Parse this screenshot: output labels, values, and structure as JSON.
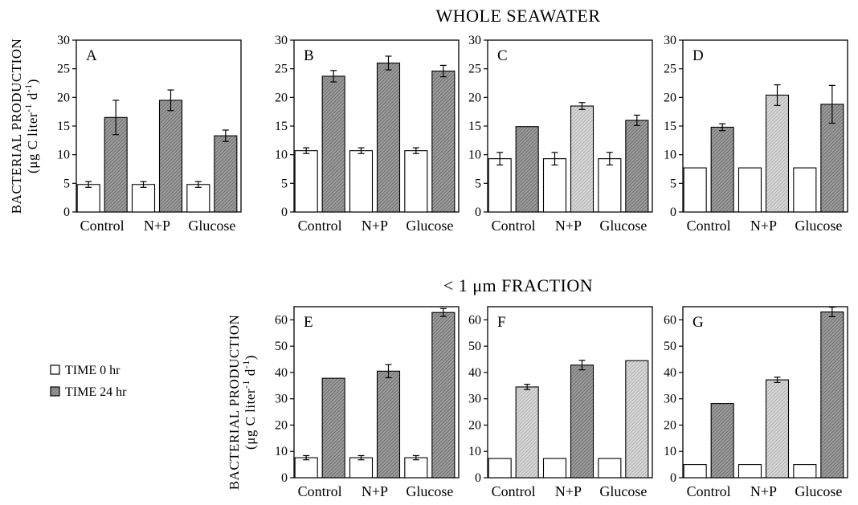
{
  "titles": {
    "top": "WHOLE SEAWATER",
    "bottom": "< 1 μm FRACTION"
  },
  "ylabel": {
    "line1": "BACTERIAL PRODUCTION",
    "line2_prefix": "(μg C liter",
    "line2_mid": " d",
    "line2_suffix": ")",
    "exp": "-1"
  },
  "legend": {
    "items": [
      {
        "label": "TIME 0 hr",
        "fill": "#ffffff"
      },
      {
        "label": "TIME 24 hr",
        "fill": "#8f8f8f"
      }
    ]
  },
  "colors": {
    "open_bar": "#ffffff",
    "dark_bar": "#8f8f8f",
    "light_bar": "#c9c9c9",
    "stroke": "#000000"
  },
  "chart_data": [
    {
      "id": "A",
      "label": "A",
      "type": "bar",
      "categories": [
        "Control",
        "N+P",
        "Glucose"
      ],
      "ylim": [
        0,
        30
      ],
      "yticks": [
        0,
        5,
        10,
        15,
        20,
        25,
        30
      ],
      "series": [
        {
          "name": "TIME 0 hr",
          "values": [
            4.8,
            4.8,
            4.8
          ],
          "err": [
            0.5,
            0.5,
            0.5
          ],
          "shade": [
            "open",
            "open",
            "open"
          ]
        },
        {
          "name": "TIME 24 hr",
          "values": [
            16.5,
            19.5,
            13.3
          ],
          "err": [
            3.0,
            1.8,
            1.0
          ],
          "shade": [
            "dark",
            "dark",
            "dark"
          ]
        }
      ]
    },
    {
      "id": "B",
      "label": "B",
      "type": "bar",
      "categories": [
        "Control",
        "N+P",
        "Glucose"
      ],
      "ylim": [
        0,
        30
      ],
      "yticks": [
        0,
        5,
        10,
        15,
        20,
        25,
        30
      ],
      "series": [
        {
          "name": "TIME 0 hr",
          "values": [
            10.7,
            10.7,
            10.7
          ],
          "err": [
            0.5,
            0.5,
            0.5
          ],
          "shade": [
            "open",
            "open",
            "open"
          ]
        },
        {
          "name": "TIME 24 hr",
          "values": [
            23.7,
            26.0,
            24.6
          ],
          "err": [
            1.0,
            1.2,
            1.0
          ],
          "shade": [
            "dark",
            "dark",
            "dark"
          ]
        }
      ]
    },
    {
      "id": "C",
      "label": "C",
      "type": "bar",
      "categories": [
        "Control",
        "N+P",
        "Glucose"
      ],
      "ylim": [
        0,
        30
      ],
      "yticks": [
        0,
        5,
        10,
        15,
        20,
        25,
        30
      ],
      "series": [
        {
          "name": "TIME 0 hr",
          "values": [
            9.3,
            9.3,
            9.3
          ],
          "err": [
            1.1,
            1.1,
            1.1
          ],
          "shade": [
            "open",
            "open",
            "open"
          ]
        },
        {
          "name": "TIME 24 hr",
          "values": [
            14.9,
            18.5,
            16.0
          ],
          "err": [
            0.0,
            0.6,
            0.9
          ],
          "shade": [
            "dark",
            "light",
            "dark"
          ]
        }
      ]
    },
    {
      "id": "D",
      "label": "D",
      "type": "bar",
      "categories": [
        "Control",
        "N+P",
        "Glucose"
      ],
      "ylim": [
        0,
        30
      ],
      "yticks": [
        0,
        5,
        10,
        15,
        20,
        25,
        30
      ],
      "series": [
        {
          "name": "TIME 0 hr",
          "values": [
            7.7,
            7.7,
            7.7
          ],
          "err": [
            0,
            0,
            0
          ],
          "shade": [
            "open",
            "open",
            "open"
          ]
        },
        {
          "name": "TIME 24 hr",
          "values": [
            14.8,
            20.4,
            18.8
          ],
          "err": [
            0.6,
            1.8,
            3.3
          ],
          "shade": [
            "dark",
            "light",
            "dark"
          ]
        }
      ]
    },
    {
      "id": "E",
      "label": "E",
      "type": "bar",
      "categories": [
        "Control",
        "N+P",
        "Glucose"
      ],
      "ylim": [
        0,
        65
      ],
      "yticks": [
        0,
        10,
        20,
        30,
        40,
        50,
        60
      ],
      "series": [
        {
          "name": "TIME 0 hr",
          "values": [
            7.6,
            7.6,
            7.6
          ],
          "err": [
            0.8,
            0.8,
            0.8
          ],
          "shade": [
            "open",
            "open",
            "open"
          ]
        },
        {
          "name": "TIME 24 hr",
          "values": [
            37.8,
            40.5,
            62.8
          ],
          "err": [
            0.0,
            2.5,
            1.5
          ],
          "shade": [
            "dark",
            "dark",
            "dark"
          ]
        }
      ]
    },
    {
      "id": "F",
      "label": "F",
      "type": "bar",
      "categories": [
        "Control",
        "N+P",
        "Glucose"
      ],
      "ylim": [
        0,
        65
      ],
      "yticks": [
        0,
        10,
        20,
        30,
        40,
        50,
        60
      ],
      "series": [
        {
          "name": "TIME 0 hr",
          "values": [
            7.3,
            7.3,
            7.3
          ],
          "err": [
            0,
            0,
            0
          ],
          "shade": [
            "open",
            "open",
            "open"
          ]
        },
        {
          "name": "TIME 24 hr",
          "values": [
            34.5,
            42.8,
            44.5
          ],
          "err": [
            1.0,
            1.8,
            0.0
          ],
          "shade": [
            "light",
            "dark",
            "light"
          ]
        }
      ]
    },
    {
      "id": "G",
      "label": "G",
      "type": "bar",
      "categories": [
        "Control",
        "N+P",
        "Glucose"
      ],
      "ylim": [
        0,
        65
      ],
      "yticks": [
        0,
        10,
        20,
        30,
        40,
        50,
        60
      ],
      "series": [
        {
          "name": "TIME 0 hr",
          "values": [
            5.0,
            5.0,
            5.0
          ],
          "err": [
            0,
            0,
            0
          ],
          "shade": [
            "open",
            "open",
            "open"
          ]
        },
        {
          "name": "TIME 24 hr",
          "values": [
            28.2,
            37.2,
            63.0
          ],
          "err": [
            0.0,
            1.0,
            1.8
          ],
          "shade": [
            "dark",
            "light",
            "dark"
          ]
        }
      ]
    }
  ]
}
